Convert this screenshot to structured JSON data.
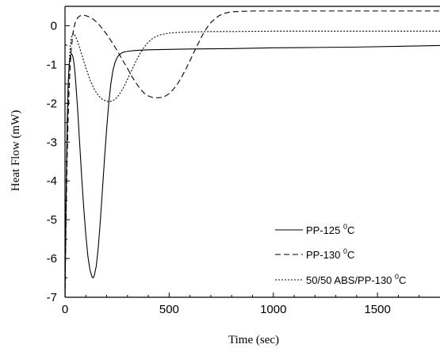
{
  "chart_data": {
    "type": "line",
    "title": "",
    "xlabel": "Time (sec)",
    "ylabel": "Heat Flow (mW)",
    "xlim": [
      0,
      1800
    ],
    "ylim": [
      -7,
      0.5
    ],
    "x_ticks": [
      0,
      500,
      1000,
      1500
    ],
    "y_ticks": [
      0,
      -1,
      -2,
      -3,
      -4,
      -5,
      -6,
      -7
    ],
    "x_tick_labels": [
      "0",
      "500",
      "1000",
      "1500"
    ],
    "y_tick_labels": [
      "0",
      "-1",
      "-2",
      "-3",
      "-4",
      "-5",
      "-6",
      "-7"
    ],
    "grid": false,
    "legend_position": "bottom-right",
    "series": [
      {
        "name": "PP-125 ",
        "name_sup": "0",
        "name_suffix": "C",
        "dash": "",
        "x": [
          0,
          5,
          10,
          15,
          20,
          25,
          30,
          35,
          40,
          45,
          50,
          60,
          70,
          80,
          90,
          100,
          110,
          120,
          130,
          135,
          140,
          150,
          160,
          170,
          180,
          190,
          200,
          210,
          220,
          230,
          240,
          250,
          260,
          270,
          280,
          300,
          330,
          360,
          400,
          500,
          600,
          800,
          1000,
          1200,
          1400,
          1600,
          1800
        ],
        "y": [
          -7,
          -4.5,
          -2.6,
          -1.5,
          -1.0,
          -0.8,
          -0.72,
          -0.75,
          -0.85,
          -1.05,
          -1.35,
          -2.1,
          -3.0,
          -3.9,
          -4.7,
          -5.4,
          -5.95,
          -6.3,
          -6.48,
          -6.5,
          -6.45,
          -6.2,
          -5.7,
          -5.0,
          -4.2,
          -3.4,
          -2.65,
          -2.0,
          -1.5,
          -1.15,
          -0.95,
          -0.82,
          -0.75,
          -0.71,
          -0.68,
          -0.66,
          -0.64,
          -0.63,
          -0.62,
          -0.61,
          -0.6,
          -0.59,
          -0.57,
          -0.56,
          -0.55,
          -0.53,
          -0.51
        ]
      },
      {
        "name": "PP-130 ",
        "name_sup": "0",
        "name_suffix": "C",
        "dash": "7,4",
        "x": [
          0,
          5,
          10,
          15,
          20,
          25,
          30,
          40,
          50,
          60,
          70,
          80,
          90,
          100,
          120,
          140,
          160,
          180,
          200,
          220,
          240,
          260,
          280,
          300,
          320,
          340,
          360,
          380,
          400,
          420,
          440,
          460,
          480,
          500,
          520,
          540,
          560,
          580,
          600,
          620,
          640,
          660,
          680,
          700,
          720,
          740,
          760,
          780,
          800,
          850,
          900,
          1000,
          1100,
          1200,
          1400,
          1600,
          1800
        ],
        "y": [
          -7,
          -5.0,
          -3.5,
          -2.4,
          -1.6,
          -1.0,
          -0.6,
          -0.12,
          0.1,
          0.2,
          0.25,
          0.27,
          0.27,
          0.26,
          0.22,
          0.15,
          0.05,
          -0.08,
          -0.22,
          -0.38,
          -0.55,
          -0.73,
          -0.92,
          -1.1,
          -1.3,
          -1.47,
          -1.62,
          -1.74,
          -1.81,
          -1.85,
          -1.86,
          -1.85,
          -1.82,
          -1.75,
          -1.64,
          -1.5,
          -1.32,
          -1.12,
          -0.9,
          -0.67,
          -0.45,
          -0.24,
          -0.06,
          0.08,
          0.18,
          0.26,
          0.31,
          0.34,
          0.36,
          0.37,
          0.38,
          0.38,
          0.38,
          0.38,
          0.38,
          0.38,
          0.38
        ]
      },
      {
        "name": "50/50 ABS/PP-130 ",
        "name_sup": "0",
        "name_suffix": "C",
        "dash": "2,2",
        "x": [
          0,
          5,
          10,
          15,
          20,
          25,
          30,
          35,
          40,
          45,
          50,
          60,
          70,
          80,
          100,
          120,
          140,
          160,
          180,
          200,
          220,
          240,
          260,
          280,
          300,
          320,
          340,
          360,
          380,
          400,
          420,
          440,
          460,
          500,
          550,
          600,
          700,
          800,
          1000,
          1200,
          1400,
          1600,
          1800
        ],
        "y": [
          -7,
          -4.8,
          -3.0,
          -1.8,
          -1.0,
          -0.55,
          -0.32,
          -0.22,
          -0.2,
          -0.22,
          -0.27,
          -0.4,
          -0.56,
          -0.74,
          -1.08,
          -1.4,
          -1.63,
          -1.8,
          -1.9,
          -1.95,
          -1.95,
          -1.9,
          -1.78,
          -1.6,
          -1.38,
          -1.15,
          -0.92,
          -0.72,
          -0.55,
          -0.42,
          -0.33,
          -0.27,
          -0.23,
          -0.19,
          -0.17,
          -0.16,
          -0.15,
          -0.15,
          -0.14,
          -0.14,
          -0.14,
          -0.14,
          -0.14
        ]
      }
    ]
  }
}
